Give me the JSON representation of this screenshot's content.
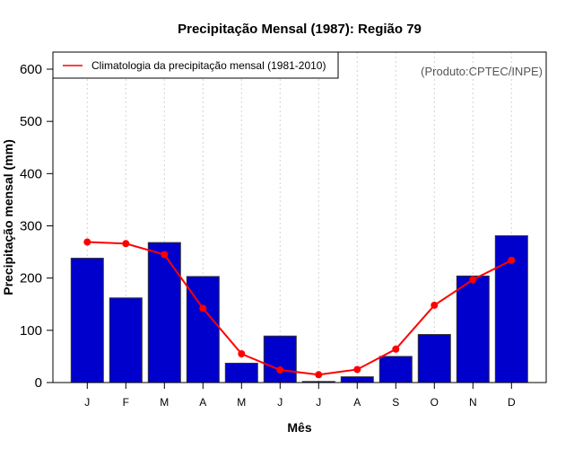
{
  "chart_data": {
    "type": "bar",
    "title": "Precipitação Mensal (1987): Região 79",
    "xlabel": "Mês",
    "ylabel": "Precipitação mensal (mm)",
    "ylim": [
      0,
      600
    ],
    "yticks": [
      0,
      100,
      200,
      300,
      400,
      500,
      600
    ],
    "categories": [
      "J",
      "F",
      "M",
      "A",
      "M",
      "J",
      "J",
      "A",
      "S",
      "O",
      "N",
      "D"
    ],
    "grid": "vertical-dotted",
    "series": [
      {
        "name": "Precipitação mensal (1987)",
        "type": "bar",
        "color": "#0000CC",
        "values": [
          238,
          162,
          268,
          203,
          37,
          89,
          2,
          11,
          50,
          92,
          204,
          281
        ]
      },
      {
        "name": "Climatologia da precipitação mensal (1981-2010)",
        "type": "line",
        "color": "#FF0000",
        "values": [
          269,
          266,
          245,
          142,
          55,
          24,
          15,
          25,
          64,
          148,
          197,
          234
        ]
      }
    ],
    "legend": {
      "position": "top-left",
      "entries": [
        "Climatologia da precipitação mensal (1981-2010)"
      ]
    },
    "annotation": "(Produto:CPTEC/INPE)",
    "annotation_position": "top-right"
  }
}
